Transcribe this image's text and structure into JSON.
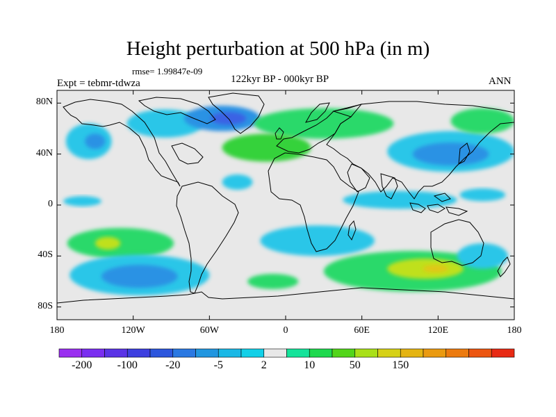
{
  "title": "Height perturbation at 500 hPa (in m)",
  "rmse": "rmse= 1.99847e-09",
  "expt": "Expt = tebmr-tdwza",
  "period": "122kyr BP - 000kyr BP",
  "season": "ANN",
  "map": {
    "projection": "cylindrical equidistant",
    "lon_range": [
      -180,
      180
    ],
    "lat_range": [
      -90,
      90
    ],
    "background_color": "#e8e8e8",
    "coastline_color": "#000000",
    "lat_ticks": [
      {
        "value": 80,
        "label": "80N"
      },
      {
        "value": 40,
        "label": "40N"
      },
      {
        "value": 0,
        "label": "0"
      },
      {
        "value": -40,
        "label": "40S"
      },
      {
        "value": -80,
        "label": "80S"
      }
    ],
    "lon_ticks": [
      {
        "value": -180,
        "label": "180"
      },
      {
        "value": -120,
        "label": "120W"
      },
      {
        "value": -60,
        "label": "60W"
      },
      {
        "value": 0,
        "label": "0"
      },
      {
        "value": 60,
        "label": "60E"
      },
      {
        "value": 120,
        "label": "120E"
      },
      {
        "value": 180,
        "label": "180"
      }
    ]
  },
  "colorbar": {
    "colors": [
      "#9a2ff0",
      "#7a2ef0",
      "#5a33e6",
      "#3d3fe0",
      "#2c56dd",
      "#2a78e2",
      "#2196e0",
      "#1ab8e6",
      "#12d0e8",
      "#e8e8e8",
      "#14e39a",
      "#1ed94e",
      "#52d51a",
      "#a9e018",
      "#d6d116",
      "#e4b412",
      "#ea9a10",
      "#ec7a0e",
      "#ec5510",
      "#e82a14"
    ],
    "labels": [
      "-200",
      "-100",
      "-20",
      "-5",
      "2",
      "10",
      "50",
      "150"
    ]
  },
  "anomalies": [
    {
      "color": "#2cc6e8",
      "lon": -95,
      "lat": 64,
      "rlon": 30,
      "rlat": 11
    },
    {
      "color": "#2c92e4",
      "lon": -50,
      "lat": 68,
      "rlon": 30,
      "rlat": 10
    },
    {
      "color": "#3a62e4",
      "lon": -45,
      "lat": 68,
      "rlon": 14,
      "rlat": 5
    },
    {
      "color": "#2cc6e8",
      "lon": -155,
      "lat": 50,
      "rlon": 18,
      "rlat": 14
    },
    {
      "color": "#2c92e4",
      "lon": -150,
      "lat": 50,
      "rlon": 8,
      "rlat": 6
    },
    {
      "color": "#2ad96a",
      "lon": 30,
      "lat": 64,
      "rlon": 55,
      "rlat": 12
    },
    {
      "color": "#36d23a",
      "lon": -15,
      "lat": 45,
      "rlon": 35,
      "rlat": 11
    },
    {
      "color": "#2cc6e8",
      "lon": 130,
      "lat": 42,
      "rlon": 50,
      "rlat": 16
    },
    {
      "color": "#2c92e4",
      "lon": 130,
      "lat": 40,
      "rlon": 30,
      "rlat": 9
    },
    {
      "color": "#2ad96a",
      "lon": 155,
      "lat": 66,
      "rlon": 25,
      "rlat": 10
    },
    {
      "color": "#2cc6e8",
      "lon": -38,
      "lat": 18,
      "rlon": 12,
      "rlat": 6
    },
    {
      "color": "#2cc6e8",
      "lon": 90,
      "lat": 4,
      "rlon": 45,
      "rlat": 7
    },
    {
      "color": "#2cc6e8",
      "lon": 155,
      "lat": 8,
      "rlon": 18,
      "rlat": 5
    },
    {
      "color": "#2cc6e8",
      "lon": -160,
      "lat": 3,
      "rlon": 15,
      "rlat": 4
    },
    {
      "color": "#2ad96a",
      "lon": -130,
      "lat": -30,
      "rlon": 42,
      "rlat": 12
    },
    {
      "color": "#bfe01c",
      "lon": -140,
      "lat": -30,
      "rlon": 10,
      "rlat": 5
    },
    {
      "color": "#2cc6e8",
      "lon": -115,
      "lat": -55,
      "rlon": 55,
      "rlat": 16
    },
    {
      "color": "#2c92e4",
      "lon": -115,
      "lat": -56,
      "rlon": 30,
      "rlat": 9
    },
    {
      "color": "#2cc6e8",
      "lon": 25,
      "lat": -28,
      "rlon": 45,
      "rlat": 12
    },
    {
      "color": "#2ad96a",
      "lon": 100,
      "lat": -52,
      "rlon": 70,
      "rlat": 16
    },
    {
      "color": "#bfe01c",
      "lon": 110,
      "lat": -50,
      "rlon": 30,
      "rlat": 8
    },
    {
      "color": "#e0c818",
      "lon": 118,
      "lat": -50,
      "rlon": 10,
      "rlat": 3
    },
    {
      "color": "#2ad96a",
      "lon": -10,
      "lat": -60,
      "rlon": 20,
      "rlat": 6
    },
    {
      "color": "#2cc6e8",
      "lon": 155,
      "lat": -40,
      "rlon": 20,
      "rlat": 10
    }
  ]
}
